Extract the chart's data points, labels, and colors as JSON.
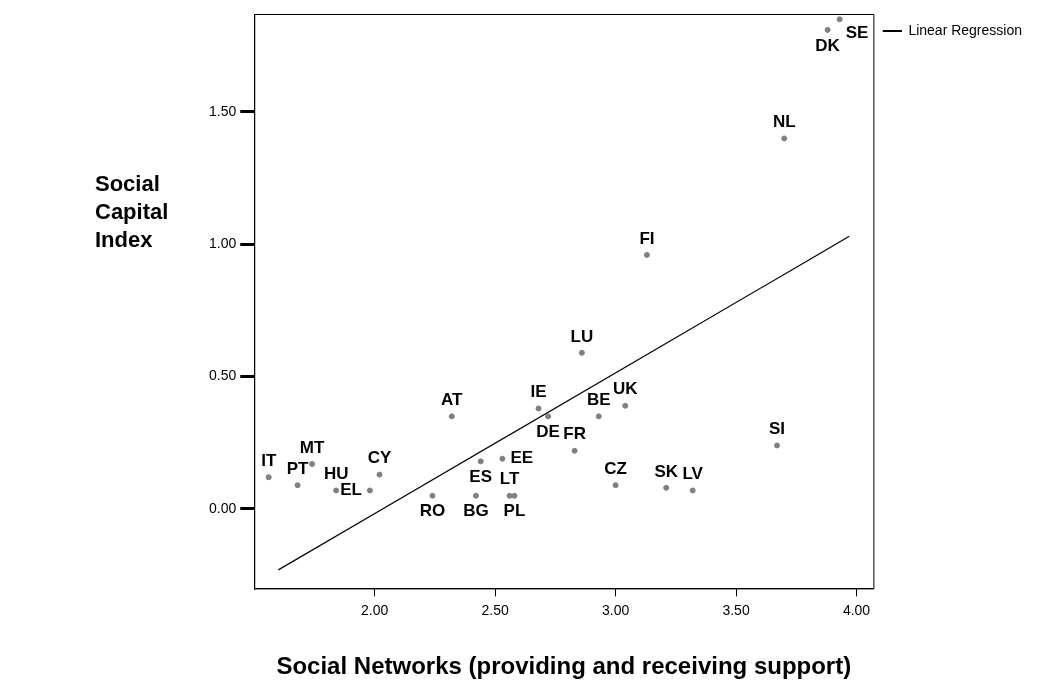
{
  "chart_data": {
    "type": "scatter",
    "xlabel": "Social Networks (providing and receiving support)",
    "ylabel": "Social Capital Index",
    "xlim": [
      1.5,
      4.07
    ],
    "ylim": [
      -0.3,
      1.87
    ],
    "xticks": [
      {
        "value": 2,
        "label": "2.00"
      },
      {
        "value": 2.5,
        "label": "2.50"
      },
      {
        "value": 3,
        "label": "3.00"
      },
      {
        "value": 3.5,
        "label": "3.50"
      },
      {
        "value": 4,
        "label": "4.00"
      }
    ],
    "yticks": [
      {
        "value": 0,
        "label": "0.00"
      },
      {
        "value": 0.5,
        "label": "0.50"
      },
      {
        "value": 1,
        "label": "1.00"
      },
      {
        "value": 1.5,
        "label": "1.50"
      }
    ],
    "grid": false,
    "legend": "top right",
    "series": [
      {
        "marker": "circle",
        "color": "#808080",
        "x": [
          1.56,
          1.68,
          1.74,
          1.84,
          1.98,
          2.02,
          2.24,
          2.32,
          2.44,
          2.42,
          2.53,
          2.56,
          2.58,
          2.68,
          2.72,
          2.83,
          2.86,
          2.93,
          3.04,
          3.0,
          3.13,
          3.21,
          3.32,
          3.67,
          3.7,
          3.88,
          3.93
        ],
        "values": [
          0.12,
          0.09,
          0.17,
          0.07,
          0.07,
          0.13,
          0.05,
          0.35,
          0.18,
          0.05,
          0.19,
          0.05,
          0.05,
          0.38,
          0.35,
          0.22,
          0.59,
          0.35,
          0.39,
          0.09,
          0.96,
          0.08,
          0.07,
          0.24,
          1.4,
          1.81,
          1.85
        ]
      },
      {
        "type": "line",
        "name": "Linear Regression",
        "color": "#000000",
        "x": [
          1.6,
          3.97
        ],
        "values": [
          -0.23,
          1.03
        ]
      }
    ],
    "annotations": [
      {
        "text": "IT",
        "x": 1.56,
        "y": 0.12
      },
      {
        "text": "PT",
        "x": 1.68,
        "y": 0.09
      },
      {
        "text": "MT",
        "x": 1.74,
        "y": 0.17
      },
      {
        "text": "HU",
        "x": 1.84,
        "y": 0.07
      },
      {
        "text": "EL",
        "x": 1.98,
        "y": 0.07
      },
      {
        "text": "CY",
        "x": 2.02,
        "y": 0.13
      },
      {
        "text": "RO",
        "x": 2.24,
        "y": 0.05
      },
      {
        "text": "AT",
        "x": 2.32,
        "y": 0.35
      },
      {
        "text": "ES",
        "x": 2.44,
        "y": 0.18
      },
      {
        "text": "BG",
        "x": 2.42,
        "y": 0.05
      },
      {
        "text": "EE",
        "x": 2.53,
        "y": 0.19
      },
      {
        "text": "LT",
        "x": 2.56,
        "y": 0.05
      },
      {
        "text": "PL",
        "x": 2.58,
        "y": 0.05
      },
      {
        "text": "IE",
        "x": 2.68,
        "y": 0.38
      },
      {
        "text": "DE",
        "x": 2.72,
        "y": 0.35
      },
      {
        "text": "FR",
        "x": 2.83,
        "y": 0.22
      },
      {
        "text": "LU",
        "x": 2.86,
        "y": 0.59
      },
      {
        "text": "BE",
        "x": 2.93,
        "y": 0.35
      },
      {
        "text": "UK",
        "x": 3.04,
        "y": 0.39
      },
      {
        "text": "CZ",
        "x": 3.0,
        "y": 0.09
      },
      {
        "text": "FI",
        "x": 3.13,
        "y": 0.96
      },
      {
        "text": "SK",
        "x": 3.21,
        "y": 0.08
      },
      {
        "text": "LV",
        "x": 3.32,
        "y": 0.07
      },
      {
        "text": "SI",
        "x": 3.67,
        "y": 0.24
      },
      {
        "text": "NL",
        "x": 3.7,
        "y": 1.4
      },
      {
        "text": "DK",
        "x": 3.88,
        "y": 1.81
      },
      {
        "text": "SE",
        "x": 3.93,
        "y": 1.85
      }
    ]
  }
}
